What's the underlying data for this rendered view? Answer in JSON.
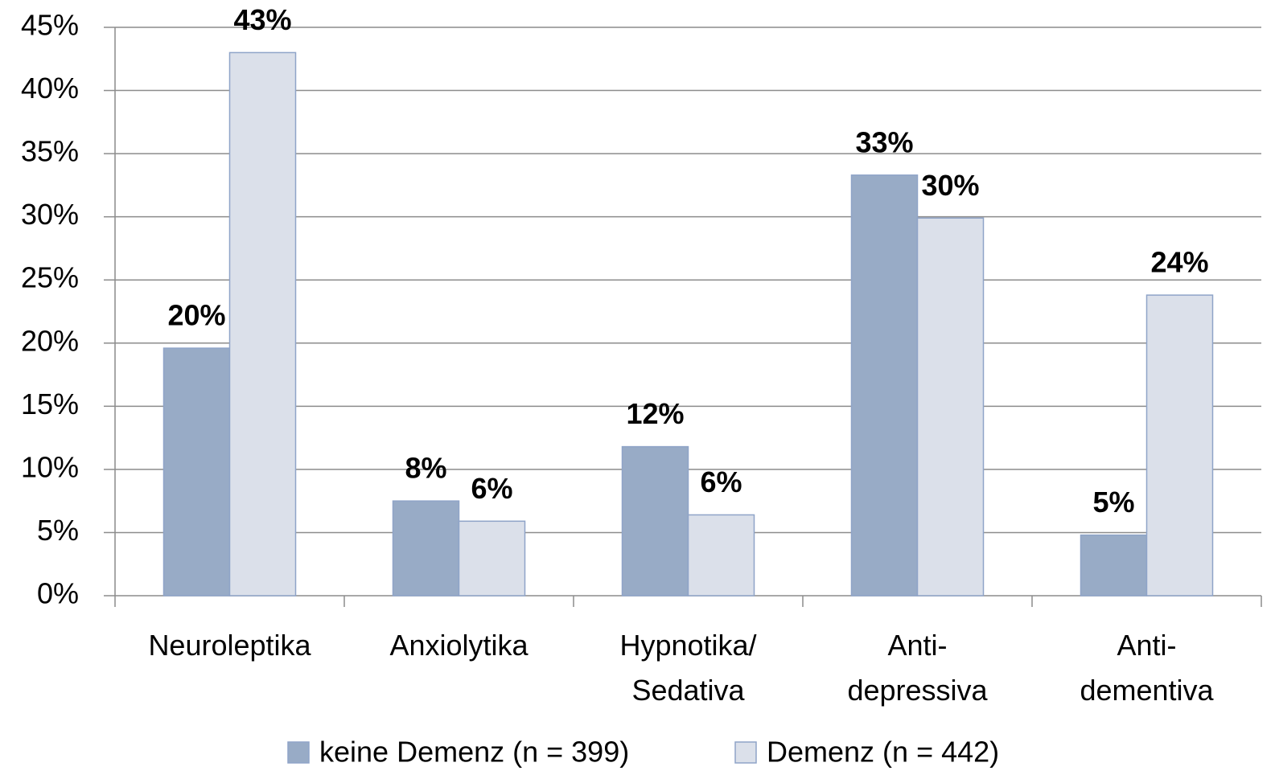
{
  "chart_data": {
    "type": "bar",
    "categories": [
      [
        "Neuroleptika"
      ],
      [
        "Anxiolytika"
      ],
      [
        "Hypnotika/",
        "Sedativa"
      ],
      [
        "Anti-",
        "depressiva"
      ],
      [
        "Anti-",
        "dementiva"
      ]
    ],
    "series": [
      {
        "name": "keine Demenz (n = 399)",
        "color": "#98abc6",
        "values": [
          19.6,
          7.5,
          11.8,
          33.3,
          4.8
        ],
        "value_labels": [
          "20%",
          "8%",
          "12%",
          "33%",
          "5%"
        ]
      },
      {
        "name": "Demenz (n = 442)",
        "color": "#dbe0ea",
        "values": [
          43,
          5.9,
          6.4,
          29.9,
          23.8
        ],
        "value_labels": [
          "43%",
          "6%",
          "6%",
          "30%",
          "24%"
        ]
      }
    ],
    "ylim": [
      0,
      45
    ],
    "yticks": [
      {
        "value": 0,
        "label": "0%"
      },
      {
        "value": 5,
        "label": "5%"
      },
      {
        "value": 10,
        "label": "10%"
      },
      {
        "value": 15,
        "label": "15%"
      },
      {
        "value": 20,
        "label": "20%"
      },
      {
        "value": 25,
        "label": "25%"
      },
      {
        "value": 30,
        "label": "30%"
      },
      {
        "value": 35,
        "label": "35%"
      },
      {
        "value": 40,
        "label": "40%"
      },
      {
        "value": 45,
        "label": "45%"
      }
    ],
    "grid": true,
    "legend": "bottom"
  }
}
